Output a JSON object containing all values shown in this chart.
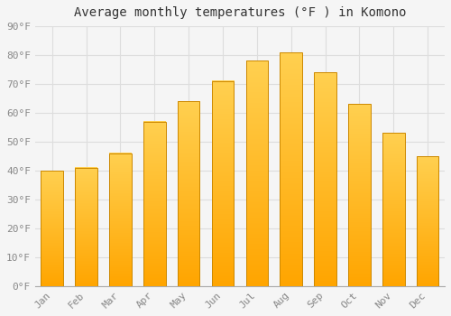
{
  "title": "Average monthly temperatures (°F ) in Komono",
  "months": [
    "Jan",
    "Feb",
    "Mar",
    "Apr",
    "May",
    "Jun",
    "Jul",
    "Aug",
    "Sep",
    "Oct",
    "Nov",
    "Dec"
  ],
  "values": [
    40,
    41,
    46,
    57,
    64,
    71,
    78,
    81,
    74,
    63,
    53,
    45
  ],
  "bar_color_bottom": "#FFA500",
  "bar_color_top": "#FFD050",
  "bar_edge_color": "#CC8800",
  "ylim": [
    0,
    90
  ],
  "yticks": [
    0,
    10,
    20,
    30,
    40,
    50,
    60,
    70,
    80,
    90
  ],
  "background_color": "#F5F5F5",
  "grid_color": "#DDDDDD",
  "title_fontsize": 10,
  "tick_fontsize": 8,
  "bar_width": 0.65
}
